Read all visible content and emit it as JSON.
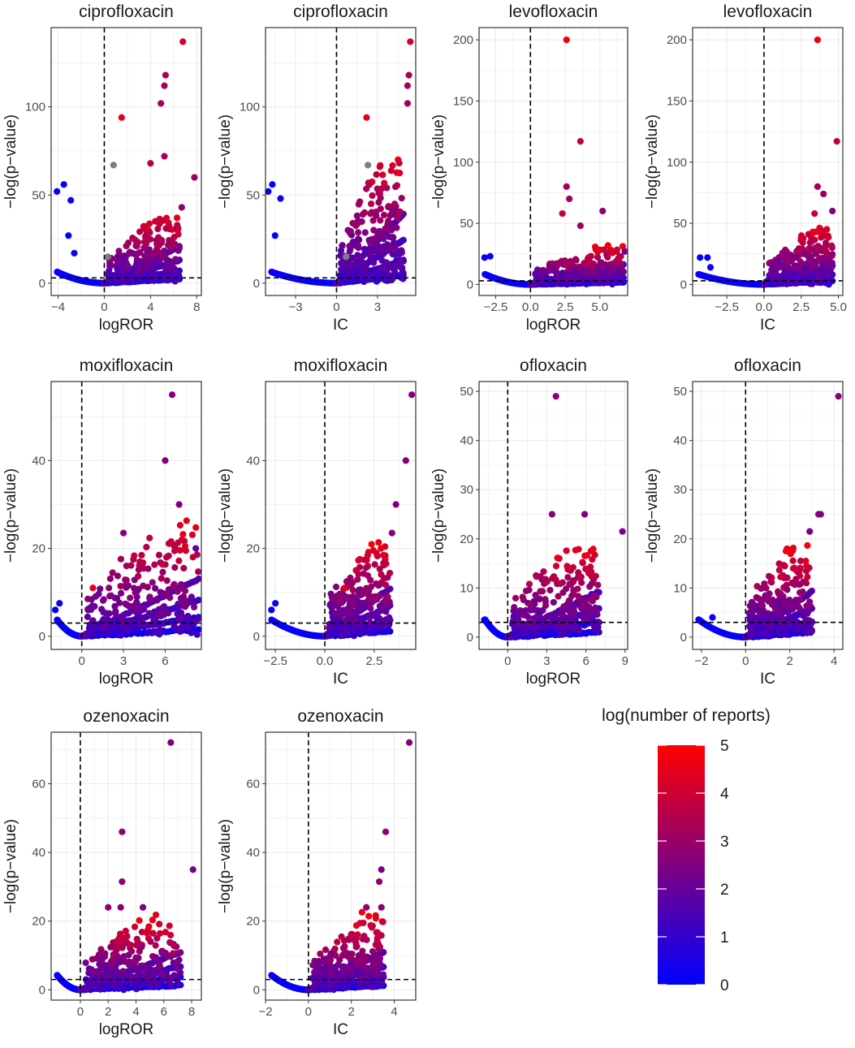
{
  "figure": {
    "caption_none": "",
    "colors": {
      "low": "#0000FF",
      "high": "#FF0000",
      "grey": "#7F7F7F",
      "grid": "#EBEBEB",
      "border": "#333333"
    }
  },
  "legend": {
    "title": "log(number of reports)",
    "ticks": [
      "0",
      "1",
      "2",
      "3",
      "4",
      "5"
    ],
    "min": 0,
    "max": 5
  },
  "chart_data": [
    {
      "type": "scatter",
      "title": "ciprofloxacin",
      "xlabel": "logROR",
      "ylabel": "−log(p−value)",
      "xlim": [
        -4.6,
        8.4
      ],
      "ylim": [
        -7,
        145
      ],
      "xticks": [
        -4,
        0,
        4,
        8
      ],
      "yticks": [
        0,
        50,
        100
      ],
      "vline": 0,
      "hline": 3,
      "cluster": {
        "x": [
          0,
          6.5
        ],
        "ymax": 38
      },
      "highlight_points": [
        {
          "x": -3.5,
          "y": 56,
          "c": 0.1
        },
        {
          "x": -4.1,
          "y": 52,
          "c": 0.1
        },
        {
          "x": -2.9,
          "y": 47,
          "c": 0.3
        },
        {
          "x": -3.1,
          "y": 27,
          "c": 0.1
        },
        {
          "x": -2.6,
          "y": 17,
          "c": 0.3
        },
        {
          "x": 0.8,
          "y": 67,
          "c": -1
        },
        {
          "x": 0.3,
          "y": 15,
          "c": -1
        },
        {
          "x": 1.5,
          "y": 94,
          "c": 4.5
        },
        {
          "x": 6.8,
          "y": 137,
          "c": 4.2
        },
        {
          "x": 5.3,
          "y": 118,
          "c": 3.4
        },
        {
          "x": 5.2,
          "y": 112,
          "c": 3.3
        },
        {
          "x": 4.9,
          "y": 102,
          "c": 3.3
        },
        {
          "x": 7.8,
          "y": 60,
          "c": 3.0
        },
        {
          "x": 6.7,
          "y": 43,
          "c": 2.8
        },
        {
          "x": 5.2,
          "y": 72,
          "c": 3.2
        },
        {
          "x": 4.0,
          "y": 68,
          "c": 3.6
        }
      ]
    },
    {
      "type": "scatter",
      "title": "ciprofloxacin",
      "xlabel": "IC",
      "ylabel": "−log(p−value)",
      "xlim": [
        -5.2,
        5.8
      ],
      "ylim": [
        -7,
        145
      ],
      "xticks": [
        -3,
        0,
        3
      ],
      "yticks": [
        0,
        50,
        100
      ],
      "vline": 0,
      "hline": 3,
      "cluster": {
        "x": [
          0,
          4.9
        ],
        "ymax": 72
      },
      "highlight_points": [
        {
          "x": -4.7,
          "y": 56,
          "c": 0.1
        },
        {
          "x": -5.0,
          "y": 52,
          "c": 0.1
        },
        {
          "x": -4.1,
          "y": 48,
          "c": 0.3
        },
        {
          "x": -4.5,
          "y": 27,
          "c": 0.1
        },
        {
          "x": 2.3,
          "y": 67,
          "c": -1
        },
        {
          "x": 0.7,
          "y": 15,
          "c": -1
        },
        {
          "x": 2.2,
          "y": 94,
          "c": 4.5
        },
        {
          "x": 5.4,
          "y": 137,
          "c": 4.2
        },
        {
          "x": 5.3,
          "y": 118,
          "c": 3.4
        },
        {
          "x": 5.2,
          "y": 112,
          "c": 3.3
        },
        {
          "x": 5.2,
          "y": 102,
          "c": 3.3
        }
      ]
    },
    {
      "type": "scatter",
      "title": "levofloxacin",
      "xlabel": "logROR",
      "ylabel": "−log(p−value)",
      "xlim": [
        -3.7,
        7.0
      ],
      "ylim": [
        -9,
        210
      ],
      "xticks": [
        -2.5,
        0,
        2.5,
        5
      ],
      "xticklabels": [
        "−2.5",
        "0.0",
        "2.5",
        "5.0"
      ],
      "yticks": [
        0,
        50,
        100,
        150,
        200
      ],
      "vline": 0,
      "hline": 3,
      "cluster": {
        "x": [
          0,
          6.7
        ],
        "ymax": 30
      },
      "highlight_points": [
        {
          "x": 2.6,
          "y": 200,
          "c": 4.7
        },
        {
          "x": 3.6,
          "y": 117,
          "c": 3.8
        },
        {
          "x": 2.6,
          "y": 80,
          "c": 3.3
        },
        {
          "x": 2.8,
          "y": 70,
          "c": 3.1
        },
        {
          "x": 5.2,
          "y": 60,
          "c": 2.7
        },
        {
          "x": 2.3,
          "y": 58,
          "c": 3.9
        },
        {
          "x": 3.6,
          "y": 48,
          "c": 3.2
        },
        {
          "x": -3.3,
          "y": 22,
          "c": 0.1
        },
        {
          "x": -2.9,
          "y": 23,
          "c": 0.1
        },
        {
          "x": 6.8,
          "y": 27,
          "c": 2.2
        }
      ]
    },
    {
      "type": "scatter",
      "title": "levofloxacin",
      "xlabel": "IC",
      "ylabel": "−log(p−value)",
      "xlim": [
        -4.8,
        5.3
      ],
      "ylim": [
        -9,
        210
      ],
      "xticks": [
        -2.5,
        0,
        2.5,
        5
      ],
      "xticklabels": [
        "−2.5",
        "0.0",
        "2.5",
        "5.0"
      ],
      "yticks": [
        0,
        50,
        100,
        150,
        200
      ],
      "vline": 0,
      "hline": 3,
      "cluster": {
        "x": [
          0,
          4.6
        ],
        "ymax": 45
      },
      "highlight_points": [
        {
          "x": 3.6,
          "y": 200,
          "c": 4.7
        },
        {
          "x": 4.9,
          "y": 117,
          "c": 3.8
        },
        {
          "x": 3.6,
          "y": 80,
          "c": 3.3
        },
        {
          "x": 4.0,
          "y": 74,
          "c": 3.1
        },
        {
          "x": 4.6,
          "y": 60,
          "c": 2.7
        },
        {
          "x": 3.4,
          "y": 58,
          "c": 3.9
        },
        {
          "x": -4.3,
          "y": 22,
          "c": 0.1
        },
        {
          "x": -3.8,
          "y": 22,
          "c": 0.1
        },
        {
          "x": -3.6,
          "y": 14,
          "c": 0.2
        }
      ]
    },
    {
      "type": "scatter",
      "title": "moxifloxacin",
      "xlabel": "logROR",
      "ylabel": "−log(p−value)",
      "xlim": [
        -2.2,
        8.6
      ],
      "ylim": [
        -3,
        58
      ],
      "xticks": [
        0,
        3,
        6
      ],
      "yticks": [
        0,
        20,
        40
      ],
      "vline": 0,
      "hline": 3,
      "cluster": {
        "x": [
          0,
          8.4
        ],
        "ymax": 24
      },
      "highlight_points": [
        {
          "x": 6.5,
          "y": 55,
          "c": 2.5
        },
        {
          "x": 6.0,
          "y": 40,
          "c": 2.5
        },
        {
          "x": 7.0,
          "y": 30,
          "c": 2.4
        },
        {
          "x": 8.2,
          "y": 20,
          "c": 2.0
        },
        {
          "x": 3.0,
          "y": 23.5,
          "c": 2.6
        },
        {
          "x": 0.8,
          "y": 11,
          "c": 4.5
        },
        {
          "x": -1.9,
          "y": 6,
          "c": 0.1
        },
        {
          "x": -1.6,
          "y": 7.5,
          "c": 0.3
        }
      ]
    },
    {
      "type": "scatter",
      "title": "moxifloxacin",
      "xlabel": "IC",
      "ylabel": "−log(p−value)",
      "xlim": [
        -3.0,
        4.6
      ],
      "ylim": [
        -3,
        58
      ],
      "xticks": [
        -2.5,
        0,
        2.5
      ],
      "xticklabels": [
        "−2.5",
        "0.0",
        "2.5"
      ],
      "yticks": [
        0,
        20,
        40
      ],
      "vline": 0,
      "hline": 3,
      "cluster": {
        "x": [
          0,
          3.3
        ],
        "ymax": 20
      },
      "highlight_points": [
        {
          "x": 4.4,
          "y": 55,
          "c": 2.5
        },
        {
          "x": 4.1,
          "y": 40,
          "c": 2.5
        },
        {
          "x": 3.6,
          "y": 30,
          "c": 2.4
        },
        {
          "x": 3.4,
          "y": 23.5,
          "c": 2.6
        },
        {
          "x": 1.0,
          "y": 11,
          "c": 4.5
        },
        {
          "x": -2.7,
          "y": 6,
          "c": 0.1
        },
        {
          "x": -2.5,
          "y": 7.5,
          "c": 0.3
        }
      ]
    },
    {
      "type": "scatter",
      "title": "ofloxacin",
      "xlabel": "logROR",
      "ylabel": "−log(p−value)",
      "xlim": [
        -2.2,
        9.2
      ],
      "ylim": [
        -2.5,
        52
      ],
      "xticks": [
        0,
        3,
        6,
        9
      ],
      "yticks": [
        0,
        10,
        20,
        30,
        40,
        50
      ],
      "vline": 0,
      "hline": 3,
      "cluster": {
        "x": [
          0,
          7.0
        ],
        "ymax": 17
      },
      "highlight_points": [
        {
          "x": 3.7,
          "y": 49,
          "c": 2.7
        },
        {
          "x": 3.4,
          "y": 25,
          "c": 2.8
        },
        {
          "x": 5.9,
          "y": 25,
          "c": 2.5
        },
        {
          "x": 8.8,
          "y": 21.5,
          "c": 2.4
        },
        {
          "x": -1.8,
          "y": 3.5,
          "c": 0.1
        }
      ]
    },
    {
      "type": "scatter",
      "title": "ofloxacin",
      "xlabel": "IC",
      "ylabel": "−log(p−value)",
      "xlim": [
        -2.4,
        4.4
      ],
      "ylim": [
        -2.5,
        52
      ],
      "xticks": [
        -2,
        0,
        2,
        4
      ],
      "yticks": [
        0,
        10,
        20,
        30,
        40,
        50
      ],
      "vline": 0,
      "hline": 3,
      "cluster": {
        "x": [
          0,
          3.0
        ],
        "ymax": 17
      },
      "highlight_points": [
        {
          "x": 4.2,
          "y": 49,
          "c": 2.7
        },
        {
          "x": 3.3,
          "y": 25,
          "c": 2.8
        },
        {
          "x": 3.4,
          "y": 25,
          "c": 2.5
        },
        {
          "x": 2.9,
          "y": 21.5,
          "c": 2.4
        },
        {
          "x": -2.1,
          "y": 3.5,
          "c": 0.1
        },
        {
          "x": -1.5,
          "y": 4,
          "c": 0.2
        }
      ]
    },
    {
      "type": "scatter",
      "title": "ozenoxacin",
      "xlabel": "logROR",
      "ylabel": "−log(p−value)",
      "xlim": [
        -2.1,
        8.7
      ],
      "ylim": [
        -3,
        75
      ],
      "xticks": [
        0,
        2,
        4,
        6,
        8
      ],
      "yticks": [
        0,
        20,
        40,
        60
      ],
      "vline": 0,
      "hline": 3,
      "cluster": {
        "x": [
          0,
          7.2
        ],
        "ymax": 20
      },
      "highlight_points": [
        {
          "x": 6.5,
          "y": 72,
          "c": 2.6
        },
        {
          "x": 3.0,
          "y": 46,
          "c": 2.8
        },
        {
          "x": 8.1,
          "y": 35,
          "c": 2.3
        },
        {
          "x": 3.0,
          "y": 31.5,
          "c": 2.9
        },
        {
          "x": 2.0,
          "y": 24,
          "c": 2.9
        },
        {
          "x": 2.9,
          "y": 24,
          "c": 2.7
        },
        {
          "x": 4.5,
          "y": 24,
          "c": 2.4
        }
      ]
    },
    {
      "type": "scatter",
      "title": "ozenoxacin",
      "xlabel": "IC",
      "ylabel": "−log(p−value)",
      "xlim": [
        -2.0,
        5.0
      ],
      "ylim": [
        -3,
        75
      ],
      "xticks": [
        -2,
        0,
        2,
        4
      ],
      "yticks": [
        0,
        20,
        40,
        60
      ],
      "vline": 0,
      "hline": 3,
      "cluster": {
        "x": [
          0,
          3.5
        ],
        "ymax": 20
      },
      "highlight_points": [
        {
          "x": 4.7,
          "y": 72,
          "c": 2.6
        },
        {
          "x": 3.6,
          "y": 46,
          "c": 2.8
        },
        {
          "x": 3.4,
          "y": 35,
          "c": 2.3
        },
        {
          "x": 3.3,
          "y": 31.5,
          "c": 2.9
        },
        {
          "x": 2.7,
          "y": 24,
          "c": 2.9
        },
        {
          "x": 3.4,
          "y": 24,
          "c": 2.7
        }
      ]
    }
  ]
}
